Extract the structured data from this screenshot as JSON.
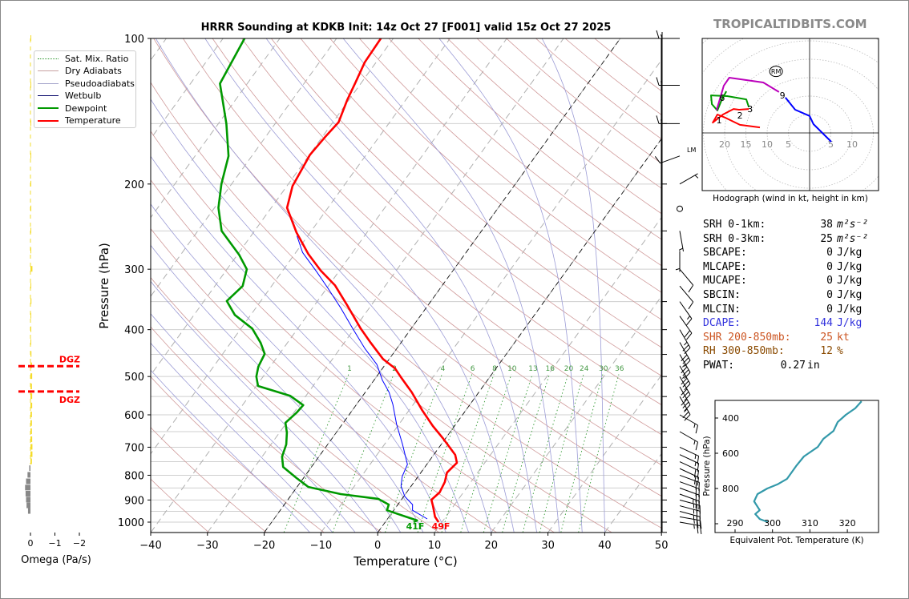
{
  "brand": "TROPICALTIDBITS.COM",
  "title": "HRRR Sounding at KDKB Init: 14z Oct 27 [F001] valid 15z Oct 27 2025",
  "legend": [
    {
      "label": "Sat. Mix. Ratio",
      "color": "#339933",
      "style": "dotted"
    },
    {
      "label": "Dry Adiabats",
      "color": "#c8a0a0",
      "style": "solid"
    },
    {
      "label": "Pseudoadiabats",
      "color": "#a0a0c8",
      "style": "solid"
    },
    {
      "label": "Wetbulb",
      "color": "#000066",
      "style": "solid"
    },
    {
      "label": "Dewpoint",
      "color": "#009900",
      "style": "thick"
    },
    {
      "label": "Temperature",
      "color": "#ff0000",
      "style": "thick"
    }
  ],
  "stats": [
    {
      "label": "SRH 0-1km:",
      "value": "38",
      "unit": "m²s⁻²",
      "color": "#000000"
    },
    {
      "label": "SRH 0-3km:",
      "value": "25",
      "unit": "m²s⁻²",
      "color": "#000000"
    },
    {
      "label": "SBCAPE:",
      "value": "0",
      "unit": "J/kg",
      "color": "#000000"
    },
    {
      "label": "MLCAPE:",
      "value": "0",
      "unit": "J/kg",
      "color": "#000000"
    },
    {
      "label": "MUCAPE:",
      "value": "0",
      "unit": "J/kg",
      "color": "#000000"
    },
    {
      "label": "SBCIN:",
      "value": "0",
      "unit": "J/kg",
      "color": "#000000"
    },
    {
      "label": "MLCIN:",
      "value": "0",
      "unit": "J/kg",
      "color": "#000000"
    },
    {
      "label": "DCAPE:",
      "value": "144",
      "unit": "J/kg",
      "color": "#3333dd"
    },
    {
      "label": "SHR 200-850mb:",
      "value": "25",
      "unit": "kt",
      "color": "#cc5522"
    },
    {
      "label": "RH 300-850mb:",
      "value": "12",
      "unit": "%",
      "color": "#8a4a00"
    },
    {
      "label": "PWAT:",
      "value": "0.27",
      "unit": "in",
      "color": "#000000"
    }
  ],
  "chart_data": [
    {
      "type": "line",
      "name": "skew-t",
      "xlabel": "Temperature (°C)",
      "ylabel": "Pressure (hPa)",
      "xlim": [
        -40,
        50
      ],
      "ylim": [
        1050,
        100
      ],
      "xticks": [
        -40,
        -30,
        -20,
        -10,
        0,
        10,
        20,
        30,
        40,
        50
      ],
      "yticks": [
        100,
        200,
        300,
        400,
        500,
        600,
        700,
        800,
        900,
        1000
      ],
      "highlight_isotherms": [
        0,
        -20
      ],
      "mixing_ratio_labels": [
        1,
        2,
        4,
        6,
        8,
        10,
        13,
        16,
        20,
        24,
        30,
        36
      ],
      "surface_labels": {
        "dewpoint": "41F",
        "temperature": "49F"
      },
      "series": [
        {
          "name": "Temperature",
          "color": "#ff0000",
          "points": [
            [
              1000,
              9.4
            ],
            [
              975,
              8.1
            ],
            [
              927,
              6.4
            ],
            [
              899,
              5.3
            ],
            [
              868,
              5.8
            ],
            [
              826,
              5.4
            ],
            [
              790,
              4.6
            ],
            [
              754,
              5.1
            ],
            [
              726,
              3.8
            ],
            [
              673,
              -0.3
            ],
            [
              633,
              -3.8
            ],
            [
              587,
              -7.7
            ],
            [
              539,
              -11.8
            ],
            [
              500,
              -15.8
            ],
            [
              481,
              -17.8
            ],
            [
              460,
              -21.1
            ],
            [
              426,
              -25.3
            ],
            [
              398,
              -28.9
            ],
            [
              355,
              -34.4
            ],
            [
              324,
              -38.9
            ],
            [
              302,
              -43.3
            ],
            [
              279,
              -47.6
            ],
            [
              252,
              -52.4
            ],
            [
              224,
              -57.2
            ],
            [
              202,
              -59
            ],
            [
              174,
              -59.9
            ],
            [
              160,
              -59.5
            ],
            [
              149,
              -59
            ],
            [
              134,
              -60.3
            ],
            [
              123,
              -61.1
            ],
            [
              112,
              -62
            ],
            [
              100,
              -62.2
            ]
          ]
        },
        {
          "name": "Dewpoint",
          "color": "#009900",
          "points": [
            [
              1000,
              5.0
            ],
            [
              992,
              5.4
            ],
            [
              945,
              -1.2
            ],
            [
              920,
              -1.6
            ],
            [
              895,
              -4.2
            ],
            [
              875,
              -11.4
            ],
            [
              846,
              -18
            ],
            [
              811,
              -21.2
            ],
            [
              769,
              -25
            ],
            [
              732,
              -26.5
            ],
            [
              691,
              -27.3
            ],
            [
              653,
              -28.7
            ],
            [
              623,
              -30.2
            ],
            [
              593,
              -29.5
            ],
            [
              573,
              -29.3
            ],
            [
              548,
              -32.8
            ],
            [
              523,
              -39.7
            ],
            [
              500,
              -41.2
            ],
            [
              477,
              -42.1
            ],
            [
              449,
              -42.6
            ],
            [
              426,
              -44.7
            ],
            [
              398,
              -48
            ],
            [
              373,
              -52.8
            ],
            [
              349,
              -56
            ],
            [
              325,
              -55.1
            ],
            [
              300,
              -56.5
            ],
            [
              280,
              -59.7
            ],
            [
              250,
              -65.8
            ],
            [
              224,
              -69.3
            ],
            [
              200,
              -71.8
            ],
            [
              175,
              -74.1
            ],
            [
              150,
              -78.6
            ],
            [
              124,
              -84.8
            ],
            [
              100,
              -86.2
            ]
          ]
        },
        {
          "name": "Wetbulb",
          "color": "#0000ff",
          "points": [
            [
              985,
              7
            ],
            [
              945,
              3.3
            ],
            [
              920,
              2.6
            ],
            [
              885,
              0.2
            ],
            [
              842,
              -1.8
            ],
            [
              805,
              -2.8
            ],
            [
              760,
              -3.4
            ],
            [
              691,
              -6.8
            ],
            [
              628,
              -10.4
            ],
            [
              571,
              -13.6
            ],
            [
              539,
              -15.8
            ],
            [
              509,
              -18.5
            ],
            [
              472,
              -21.5
            ],
            [
              437,
              -25.7
            ],
            [
              398,
              -30.3
            ],
            [
              361,
              -35
            ],
            [
              329,
              -39.7
            ],
            [
              304,
              -43.8
            ],
            [
              277,
              -48.8
            ],
            [
              256,
              -51.9
            ]
          ]
        }
      ],
      "winds": [
        {
          "p": 1000,
          "kt": 25,
          "dir": 100
        },
        {
          "p": 975,
          "kt": 25,
          "dir": 100
        },
        {
          "p": 950,
          "kt": 25,
          "dir": 105
        },
        {
          "p": 925,
          "kt": 25,
          "dir": 105
        },
        {
          "p": 900,
          "kt": 25,
          "dir": 105
        },
        {
          "p": 875,
          "kt": 25,
          "dir": 110
        },
        {
          "p": 850,
          "kt": 20,
          "dir": 110
        },
        {
          "p": 825,
          "kt": 20,
          "dir": 110
        },
        {
          "p": 800,
          "kt": 20,
          "dir": 110
        },
        {
          "p": 775,
          "kt": 20,
          "dir": 115
        },
        {
          "p": 750,
          "kt": 20,
          "dir": 115
        },
        {
          "p": 725,
          "kt": 15,
          "dir": 115
        },
        {
          "p": 700,
          "kt": 15,
          "dir": 115
        },
        {
          "p": 650,
          "kt": 15,
          "dir": 120
        },
        {
          "p": 600,
          "kt": 15,
          "dir": 120
        },
        {
          "p": 550,
          "kt": 25,
          "dir": 150
        },
        {
          "p": 525,
          "kt": 30,
          "dir": 150
        },
        {
          "p": 500,
          "kt": 30,
          "dir": 150
        },
        {
          "p": 475,
          "kt": 35,
          "dir": 150
        },
        {
          "p": 450,
          "kt": 35,
          "dir": 150
        },
        {
          "p": 425,
          "kt": 30,
          "dir": 150
        },
        {
          "p": 400,
          "kt": 25,
          "dir": 150
        },
        {
          "p": 375,
          "kt": 20,
          "dir": 145
        },
        {
          "p": 350,
          "kt": 15,
          "dir": 145
        },
        {
          "p": 325,
          "kt": 10,
          "dir": 140
        },
        {
          "p": 300,
          "kt": 10,
          "dir": 140
        },
        {
          "p": 275,
          "kt": 5,
          "dir": 180
        },
        {
          "p": 250,
          "kt": 5,
          "dir": 170
        },
        {
          "p": 225,
          "kt": 0,
          "dir": 0
        },
        {
          "p": 200,
          "kt": 5,
          "dir": 60
        },
        {
          "p": 175,
          "kt": 10,
          "dir": 250
        },
        {
          "p": 150,
          "kt": 15,
          "dir": 270
        },
        {
          "p": 125,
          "kt": 15,
          "dir": 270
        },
        {
          "p": 100,
          "kt": 15,
          "dir": 270
        }
      ],
      "lm_label": {
        "p": 170,
        "text": "LM"
      }
    },
    {
      "type": "bar",
      "name": "omega",
      "xlabel": "Omega (Pa/s)",
      "xticks": [
        0,
        -1,
        -2
      ],
      "xtick_labels": [
        "0",
        "−1",
        "−2"
      ],
      "dgz": {
        "top_p": 476,
        "bottom_p": 537,
        "label": "DGZ",
        "color": "#ff0000"
      },
      "levels": [
        100,
        125,
        150,
        175,
        200,
        225,
        250,
        275,
        300,
        325,
        350,
        375,
        400,
        425,
        450,
        475,
        500,
        525,
        550,
        575,
        600,
        625,
        650,
        675,
        700,
        725,
        750,
        775,
        800,
        825,
        850,
        875,
        900,
        925,
        950
      ],
      "values": [
        -0.01,
        -0.01,
        -0.01,
        -0.01,
        -0.02,
        -0.01,
        -0.01,
        -0.03,
        -0.08,
        -0.03,
        -0.04,
        -0.02,
        -0.03,
        -0.03,
        -0.04,
        -0.06,
        -0.07,
        -0.06,
        -0.07,
        -0.07,
        -0.06,
        -0.06,
        -0.06,
        -0.07,
        -0.08,
        -0.08,
        -0.06,
        0.05,
        0.12,
        0.18,
        0.22,
        0.2,
        0.18,
        0.16,
        0.1
      ]
    },
    {
      "type": "line",
      "name": "hodograph",
      "xlabel": "Hodograph (wind in kt, height in km)",
      "ring_labels": [
        {
          "u": -20,
          "t": "20"
        },
        {
          "u": -15,
          "t": "15"
        },
        {
          "u": -10,
          "t": "10"
        },
        {
          "u": -5,
          "t": "5"
        },
        {
          "u": 5,
          "t": "5"
        },
        {
          "u": 10,
          "t": "10"
        }
      ],
      "segments": [
        {
          "layer": "0-3 km",
          "color": "#ff0000",
          "uv": [
            [
              -11.7,
              1.5
            ],
            [
              -16.4,
              2.2
            ],
            [
              -19.8,
              4.1
            ],
            [
              -21.7,
              5.0
            ],
            [
              -22.8,
              2.8
            ],
            [
              -20.4,
              5.0
            ],
            [
              -17.9,
              6.5
            ],
            [
              -16.6,
              6.3
            ],
            [
              -14.3,
              6.5
            ]
          ]
        },
        {
          "layer": "3-6 km",
          "color": "#009900",
          "uv": [
            [
              -14.3,
              7.0
            ],
            [
              -14.9,
              9.1
            ],
            [
              -19.4,
              10
            ],
            [
              -23.2,
              10.2
            ],
            [
              -23,
              7.8
            ],
            [
              -21.7,
              6.1
            ],
            [
              -20.8,
              8.7
            ],
            [
              -19.6,
              11.3
            ]
          ]
        },
        {
          "layer": "6-9 km",
          "color": "#bb00bb",
          "uv": [
            [
              -21.9,
              6.1
            ],
            [
              -20.2,
              12.8
            ],
            [
              -18.9,
              15
            ],
            [
              -10.9,
              13.7
            ],
            [
              -7.2,
              11.1
            ]
          ]
        },
        {
          "layer": "9+ km",
          "color": "#0000ff",
          "uv": [
            [
              -5.7,
              9.6
            ],
            [
              -3.4,
              6.3
            ],
            [
              0,
              4.6
            ],
            [
              0.9,
              2.4
            ],
            [
              5.1,
              -2.4
            ]
          ]
        }
      ],
      "height_labels": [
        {
          "t": "1",
          "u": -21.3,
          "v": 3.5
        },
        {
          "t": "2",
          "u": -16.4,
          "v": 4.8
        },
        {
          "t": "3",
          "u": -14,
          "v": 6.5
        },
        {
          "t": "6",
          "u": -20.6,
          "v": 9.6
        },
        {
          "t": "9",
          "u": -6.4,
          "v": 10.2
        }
      ],
      "storm_motion": {
        "label": "RM",
        "u": -7.9,
        "v": 16.7
      }
    },
    {
      "type": "line",
      "name": "theta-e",
      "xlabel": "Equivalent Pot. Temperature (K)",
      "ylabel": "Pressure (hPa)",
      "xticks": [
        290,
        300,
        310,
        320
      ],
      "yticks": [
        400,
        600,
        800,
        1000
      ],
      "xlim": [
        284.5,
        328.5
      ],
      "ylim": [
        1050,
        300
      ],
      "color": "#3399aa",
      "points": [
        [
          305,
          323.8
        ],
        [
          345,
          322.1
        ],
        [
          382,
          319.6
        ],
        [
          423,
          317.4
        ],
        [
          473,
          316.3
        ],
        [
          518,
          313.6
        ],
        [
          564,
          312.1
        ],
        [
          618,
          308.4
        ],
        [
          673,
          306.3
        ],
        [
          745,
          303.9
        ],
        [
          777,
          301.3
        ],
        [
          800,
          298.6
        ],
        [
          832,
          296
        ],
        [
          873,
          295.1
        ],
        [
          923,
          296.6
        ],
        [
          945,
          295.4
        ],
        [
          973,
          296.6
        ],
        [
          991,
          298.8
        ]
      ]
    }
  ]
}
